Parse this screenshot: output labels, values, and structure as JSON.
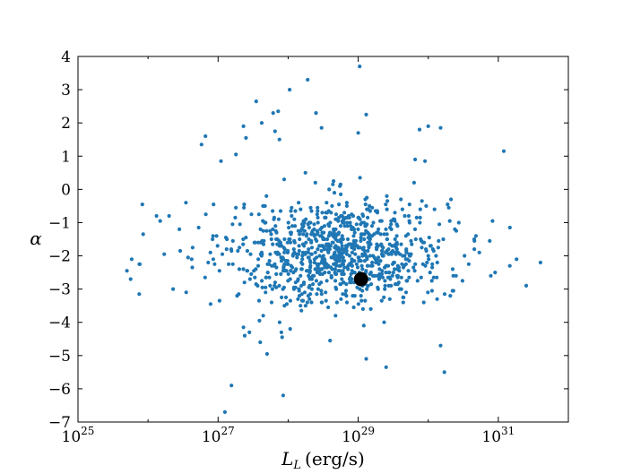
{
  "chart_data": {
    "type": "scatter",
    "title": "",
    "xlabel_var": "L",
    "xlabel_sub": "L",
    "xlabel_unit": "(erg/s)",
    "ylabel": "α",
    "x_scale": "log",
    "xlim": [
      1e+25,
      1e+32
    ],
    "ylim": [
      -7,
      4
    ],
    "x_ticks": [
      {
        "base": "10",
        "exp": "25"
      },
      {
        "base": "10",
        "exp": "27"
      },
      {
        "base": "10",
        "exp": "29"
      },
      {
        "base": "10",
        "exp": "31"
      }
    ],
    "y_ticks": [
      "−7",
      "−6",
      "−5",
      "−4",
      "−3",
      "−2",
      "−1",
      "0",
      "1",
      "2",
      "3",
      "4"
    ],
    "grid": false,
    "colors": {
      "points": "#1f77b4",
      "highlight": "#000000"
    },
    "highlight": {
      "x": 1.1e+29,
      "y": -2.7
    },
    "outliers": [
      [
        5e+25,
        -2.45
      ],
      [
        7.5e+25,
        -2.25
      ],
      [
        1.7e+26,
        -1.95
      ],
      [
        3.5e+26,
        -3.1
      ],
      [
        4.2e+26,
        -2.1
      ],
      [
        5.8e+26,
        1.35
      ],
      [
        6.6e+26,
        1.6
      ],
      [
        7.8e+26,
        -3.45
      ],
      [
        1.25e+27,
        -6.7
      ],
      [
        1.55e+27,
        -5.9
      ],
      [
        1.1e+27,
        0.85
      ],
      [
        1.05e+27,
        -3.35
      ],
      [
        1.8e+27,
        1.05
      ],
      [
        2.3e+27,
        1.9
      ],
      [
        2.5e+27,
        1.55
      ],
      [
        2.3e+27,
        -4.15
      ],
      [
        2.4e+27,
        -4.4
      ],
      [
        2.8e+27,
        -4.3
      ],
      [
        3.5e+27,
        2.65
      ],
      [
        4e+27,
        -4.6
      ],
      [
        4.2e+27,
        2
      ],
      [
        5e+27,
        -4.95
      ],
      [
        6.1e+27,
        2.3
      ],
      [
        6.5e+27,
        1.75
      ],
      [
        7.2e+27,
        2.35
      ],
      [
        8e+27,
        -4.3
      ],
      [
        8.2e+27,
        -4.45
      ],
      [
        8.5e+27,
        -6.2
      ],
      [
        7.5e+27,
        1.5
      ],
      [
        1.05e+28,
        3
      ],
      [
        1.9e+28,
        3.3
      ],
      [
        2.5e+28,
        2.3
      ],
      [
        3e+28,
        1.85
      ],
      [
        1.05e+29,
        3.7
      ],
      [
        1.3e+29,
        2.25
      ],
      [
        1e+29,
        1.7
      ],
      [
        1.3e+29,
        -5.1
      ],
      [
        1.2e+29,
        -4.1
      ],
      [
        2.5e+29,
        -5.35
      ],
      [
        7.5e+29,
        1.8
      ],
      [
        1e+30,
        1.9
      ],
      [
        1.5e+30,
        -4.7
      ],
      [
        1.7e+30,
        -5.5
      ],
      [
        1.5e+30,
        1.85
      ],
      [
        1.2e+31,
        1.15
      ],
      [
        2.5e+31,
        -2.9
      ],
      [
        4e+31,
        -2.2
      ],
      [
        6.5e+29,
        0.9
      ],
      [
        9e+29,
        0.85
      ]
    ]
  }
}
